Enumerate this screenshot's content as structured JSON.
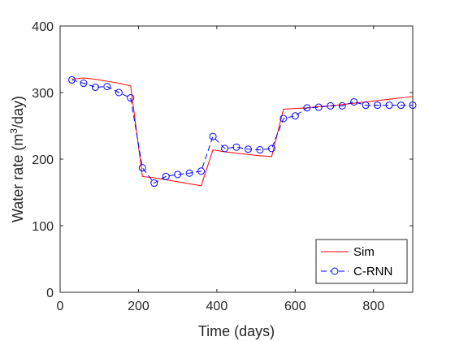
{
  "chart_data": {
    "type": "line",
    "xlabel": "Time (days)",
    "ylabel_parts": {
      "before": "Water rate (m",
      "sup": "3",
      "after": "/day)"
    },
    "xlim": [
      0,
      900
    ],
    "ylim": [
      0,
      400
    ],
    "xticks": [
      0,
      200,
      400,
      600,
      800
    ],
    "yticks": [
      0,
      100,
      200,
      300,
      400
    ],
    "grid": false,
    "legend_position": "bottom-right",
    "series": [
      {
        "name": "Sim",
        "color": "#ff0000",
        "style": "solid",
        "marker": "none",
        "x": [
          30,
          60,
          90,
          120,
          150,
          180,
          210,
          240,
          270,
          300,
          330,
          360,
          390,
          420,
          450,
          480,
          510,
          540,
          570,
          600,
          630,
          660,
          690,
          720,
          750,
          780,
          810,
          840,
          870,
          900
        ],
        "y": [
          320,
          322,
          320,
          317,
          314,
          310,
          174,
          172,
          169,
          166,
          163,
          160,
          214,
          211,
          209,
          207,
          205,
          204,
          275,
          276,
          277,
          279,
          280,
          282,
          284,
          286,
          288,
          290,
          292,
          294
        ]
      },
      {
        "name": "C-RNN",
        "color": "#0000ff",
        "style": "dashed",
        "marker": "circle",
        "x": [
          30,
          60,
          90,
          120,
          150,
          180,
          210,
          240,
          270,
          300,
          330,
          360,
          390,
          420,
          450,
          480,
          510,
          540,
          570,
          600,
          630,
          660,
          690,
          720,
          750,
          780,
          810,
          840,
          870,
          900
        ],
        "y": [
          319,
          314,
          308,
          309,
          300,
          292,
          187,
          164,
          174,
          177,
          179,
          182,
          234,
          216,
          218,
          215,
          214,
          216,
          261,
          265,
          277,
          278,
          280,
          280,
          286,
          281,
          281,
          281,
          281,
          281
        ]
      }
    ]
  }
}
